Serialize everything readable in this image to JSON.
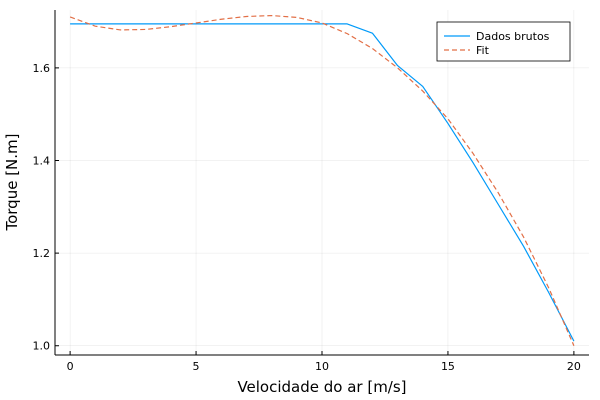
{
  "chart_data": {
    "type": "line",
    "title": "",
    "xlabel": "Velocidade do ar [m/s]",
    "ylabel": "Torque [N.m]",
    "xlim": [
      -0.6,
      20.6
    ],
    "ylim": [
      0.98,
      1.725
    ],
    "xticks": [
      0,
      5,
      10,
      15,
      20
    ],
    "yticks": [
      1.0,
      1.2,
      1.4,
      1.6
    ],
    "xtick_labels": [
      "0",
      "5",
      "10",
      "15",
      "20"
    ],
    "ytick_labels": [
      "1.0",
      "1.2",
      "1.4",
      "1.6"
    ],
    "grid": true,
    "legend_position": "top-right",
    "series": [
      {
        "name": "Dados brutos",
        "color": "#009af9",
        "style": "solid",
        "x": [
          0,
          1,
          2,
          3,
          4,
          5,
          6,
          7,
          8,
          9,
          10,
          11,
          12,
          13,
          14,
          15,
          16,
          17,
          18,
          19,
          20
        ],
        "y": [
          1.695,
          1.695,
          1.695,
          1.695,
          1.695,
          1.695,
          1.695,
          1.695,
          1.695,
          1.695,
          1.695,
          1.695,
          1.675,
          1.605,
          1.56,
          1.48,
          1.395,
          1.305,
          1.215,
          1.115,
          1.01
        ]
      },
      {
        "name": "Fit",
        "color": "#e26f46",
        "style": "dashed",
        "x": [
          0,
          1,
          2,
          3,
          4,
          5,
          6,
          7,
          8,
          9,
          10,
          11,
          12,
          13,
          14,
          15,
          16,
          17,
          18,
          19,
          20
        ],
        "y": [
          1.71,
          1.69,
          1.682,
          1.683,
          1.689,
          1.697,
          1.705,
          1.711,
          1.713,
          1.709,
          1.697,
          1.674,
          1.642,
          1.6,
          1.55,
          1.49,
          1.415,
          1.33,
          1.235,
          1.125,
          1.0
        ]
      }
    ]
  }
}
